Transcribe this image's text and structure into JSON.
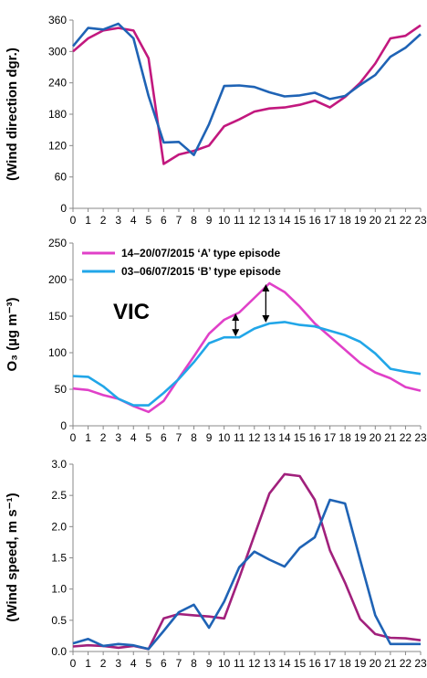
{
  "chart_data": [
    {
      "type": "line",
      "ylabel": "(Wind direction dgr.)",
      "ylim": [
        0,
        360
      ],
      "yticks": [
        "0",
        "60",
        "120",
        "180",
        "240",
        "300",
        "360"
      ],
      "x": [
        0,
        1,
        2,
        3,
        4,
        5,
        6,
        7,
        8,
        9,
        10,
        11,
        12,
        13,
        14,
        15,
        16,
        17,
        18,
        19,
        20,
        21,
        22,
        23
      ],
      "xticks": [
        "0",
        "1",
        "2",
        "3",
        "4",
        "5",
        "6",
        "7",
        "8",
        "9",
        "10",
        "11",
        "12",
        "13",
        "14",
        "15",
        "16",
        "17",
        "18",
        "19",
        "20",
        "21",
        "22",
        "23"
      ],
      "series": [
        {
          "color": "#c2187e",
          "values": [
            300,
            325,
            340,
            345,
            340,
            287,
            85,
            103,
            110,
            120,
            157,
            170,
            185,
            191,
            193,
            198,
            206,
            193,
            213,
            240,
            277,
            325,
            330,
            350
          ]
        },
        {
          "color": "#1f63b5",
          "values": [
            310,
            345,
            342,
            353,
            325,
            215,
            126,
            127,
            102,
            161,
            234,
            235,
            232,
            222,
            214,
            216,
            221,
            209,
            215,
            236,
            255,
            290,
            307,
            333
          ]
        }
      ]
    },
    {
      "type": "line",
      "ylabel": "O₃ (µg  m⁻³)",
      "ylim": [
        0,
        250
      ],
      "yticks": [
        "0",
        "50",
        "100",
        "150",
        "200",
        "250"
      ],
      "x": [
        0,
        1,
        2,
        3,
        4,
        5,
        6,
        7,
        8,
        9,
        10,
        11,
        12,
        13,
        14,
        15,
        16,
        17,
        18,
        19,
        20,
        21,
        22,
        23
      ],
      "xticks": [
        "0",
        "1",
        "2",
        "3",
        "4",
        "5",
        "6",
        "7",
        "8",
        "9",
        "10",
        "11",
        "12",
        "13",
        "14",
        "15",
        "16",
        "17",
        "18",
        "19",
        "20",
        "21",
        "22",
        "23"
      ],
      "annotation": "VIC",
      "legend_position": "top-left",
      "series": [
        {
          "name": "14–20/07/2015  ‘A’ type episode",
          "color": "#e040c8",
          "values": [
            51,
            49,
            42,
            37,
            27,
            19,
            34,
            65,
            95,
            126,
            145,
            155,
            175,
            195,
            183,
            163,
            140,
            122,
            104,
            86,
            73,
            65,
            53,
            48
          ]
        },
        {
          "name": "03–06/07/2015  ‘B’ type episode",
          "color": "#21a6e8",
          "values": [
            68,
            67,
            54,
            37,
            28,
            28,
            45,
            64,
            87,
            113,
            121,
            121,
            133,
            140,
            142,
            138,
            136,
            130,
            124,
            115,
            99,
            78,
            74,
            71
          ]
        }
      ]
    },
    {
      "type": "line",
      "ylabel": "(Wind speed, m  s⁻¹)",
      "ylim": [
        0,
        3
      ],
      "yticks": [
        "0.0",
        "0.5",
        "1.0",
        "1.5",
        "2.0",
        "2.5",
        "3.0"
      ],
      "x": [
        0,
        1,
        2,
        3,
        4,
        5,
        6,
        7,
        8,
        9,
        10,
        11,
        12,
        13,
        14,
        15,
        16,
        17,
        18,
        19,
        20,
        21,
        22,
        23
      ],
      "xticks": [
        "0",
        "1",
        "2",
        "3",
        "4",
        "5",
        "6",
        "7",
        "8",
        "9",
        "10",
        "11",
        "12",
        "13",
        "14",
        "15",
        "16",
        "17",
        "18",
        "19",
        "20",
        "21",
        "22",
        "23"
      ],
      "series": [
        {
          "color": "#a1207c",
          "values": [
            0.08,
            0.1,
            0.09,
            0.06,
            0.09,
            0.04,
            0.53,
            0.6,
            0.58,
            0.56,
            0.53,
            1.18,
            1.86,
            2.53,
            2.84,
            2.81,
            2.43,
            1.62,
            1.1,
            0.52,
            0.28,
            0.22,
            0.21,
            0.18
          ]
        },
        {
          "color": "#1f63b5",
          "values": [
            0.13,
            0.2,
            0.09,
            0.12,
            0.1,
            0.04,
            0.33,
            0.63,
            0.75,
            0.38,
            0.8,
            1.35,
            1.6,
            1.47,
            1.36,
            1.66,
            1.83,
            2.43,
            2.37,
            1.47,
            0.58,
            0.12,
            0.12,
            0.12
          ]
        }
      ]
    }
  ]
}
